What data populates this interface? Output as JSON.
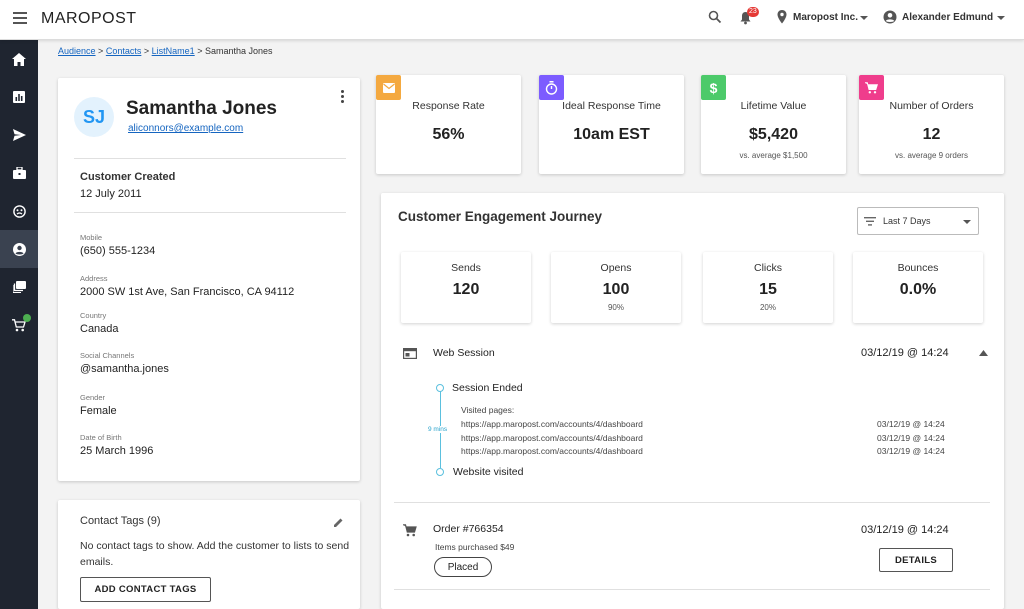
{
  "app": {
    "logo": "MAROPOST",
    "notifications_count": "23",
    "account": "Maropost Inc.",
    "user": "Alexander Edmund"
  },
  "breadcrumb": {
    "items": [
      "Audience",
      "Contacts",
      "ListName1"
    ],
    "sep": ">",
    "current": "Samantha Jones"
  },
  "profile": {
    "initials": "SJ",
    "name": "Samantha Jones",
    "email": "aliconnors@example.com",
    "created_label": "Customer Created",
    "created_value": "12 July 2011",
    "fields": [
      {
        "label": "Mobile",
        "value": "(650) 555-1234"
      },
      {
        "label": "Address",
        "value": "2000 SW 1st Ave, San Francisco, CA 94112"
      },
      {
        "label": "Country",
        "value": "Canada"
      },
      {
        "label": "Social Channels",
        "value": "@samantha.jones"
      },
      {
        "label": "Gender",
        "value": "Female"
      },
      {
        "label": "Date of Birth",
        "value": "25 March 1996"
      }
    ]
  },
  "tags": {
    "title": "Contact Tags (9)",
    "empty_text": "No contact tags to show. Add the customer to lists to send emails.",
    "button": "ADD CONTACT TAGS"
  },
  "metrics": [
    {
      "label": "Response Rate",
      "value": "56%",
      "sub": "",
      "icon": "mail-icon",
      "color": "#f4a940"
    },
    {
      "label": "Ideal Response Time",
      "value": "10am EST",
      "sub": "",
      "icon": "timer-icon",
      "color": "#7c5cff"
    },
    {
      "label": "Lifetime Value",
      "value": "$5,420",
      "sub": "vs. average $1,500",
      "icon": "dollar-icon",
      "color": "#4cca6a"
    },
    {
      "label": "Number of Orders",
      "value": "12",
      "sub": "vs. average 9 orders",
      "icon": "cart-icon",
      "color": "#ef3d8c"
    }
  ],
  "engagement": {
    "title": "Customer Engagement Journey",
    "filter": "Last 7 Days",
    "stats": [
      {
        "label": "Sends",
        "value": "120",
        "sub": ""
      },
      {
        "label": "Opens",
        "value": "100",
        "sub": "90%"
      },
      {
        "label": "Clicks",
        "value": "15",
        "sub": "20%"
      },
      {
        "label": "Bounces",
        "value": "0.0%",
        "sub": ""
      }
    ],
    "web_session": {
      "title": "Web Session",
      "date": "03/12/19 @ 14:24",
      "ended": "Session Ended",
      "visited_label": "Visited pages:",
      "pages": [
        {
          "url": "https://app.maropost.com/accounts/4/dashboard",
          "date": "03/12/19 @ 14:24"
        },
        {
          "url": "https://app.maropost.com/accounts/4/dashboard",
          "date": "03/12/19 @ 14:24"
        },
        {
          "url": "https://app.maropost.com/accounts/4/dashboard",
          "date": "03/12/19 @ 14:24"
        }
      ],
      "duration": "9 mins",
      "visited": "Website visited"
    },
    "order": {
      "title": "Order #766354",
      "date": "03/12/19 @ 14:24",
      "items": "Items purchased $49",
      "status": "Placed",
      "button": "DETAILS"
    }
  }
}
